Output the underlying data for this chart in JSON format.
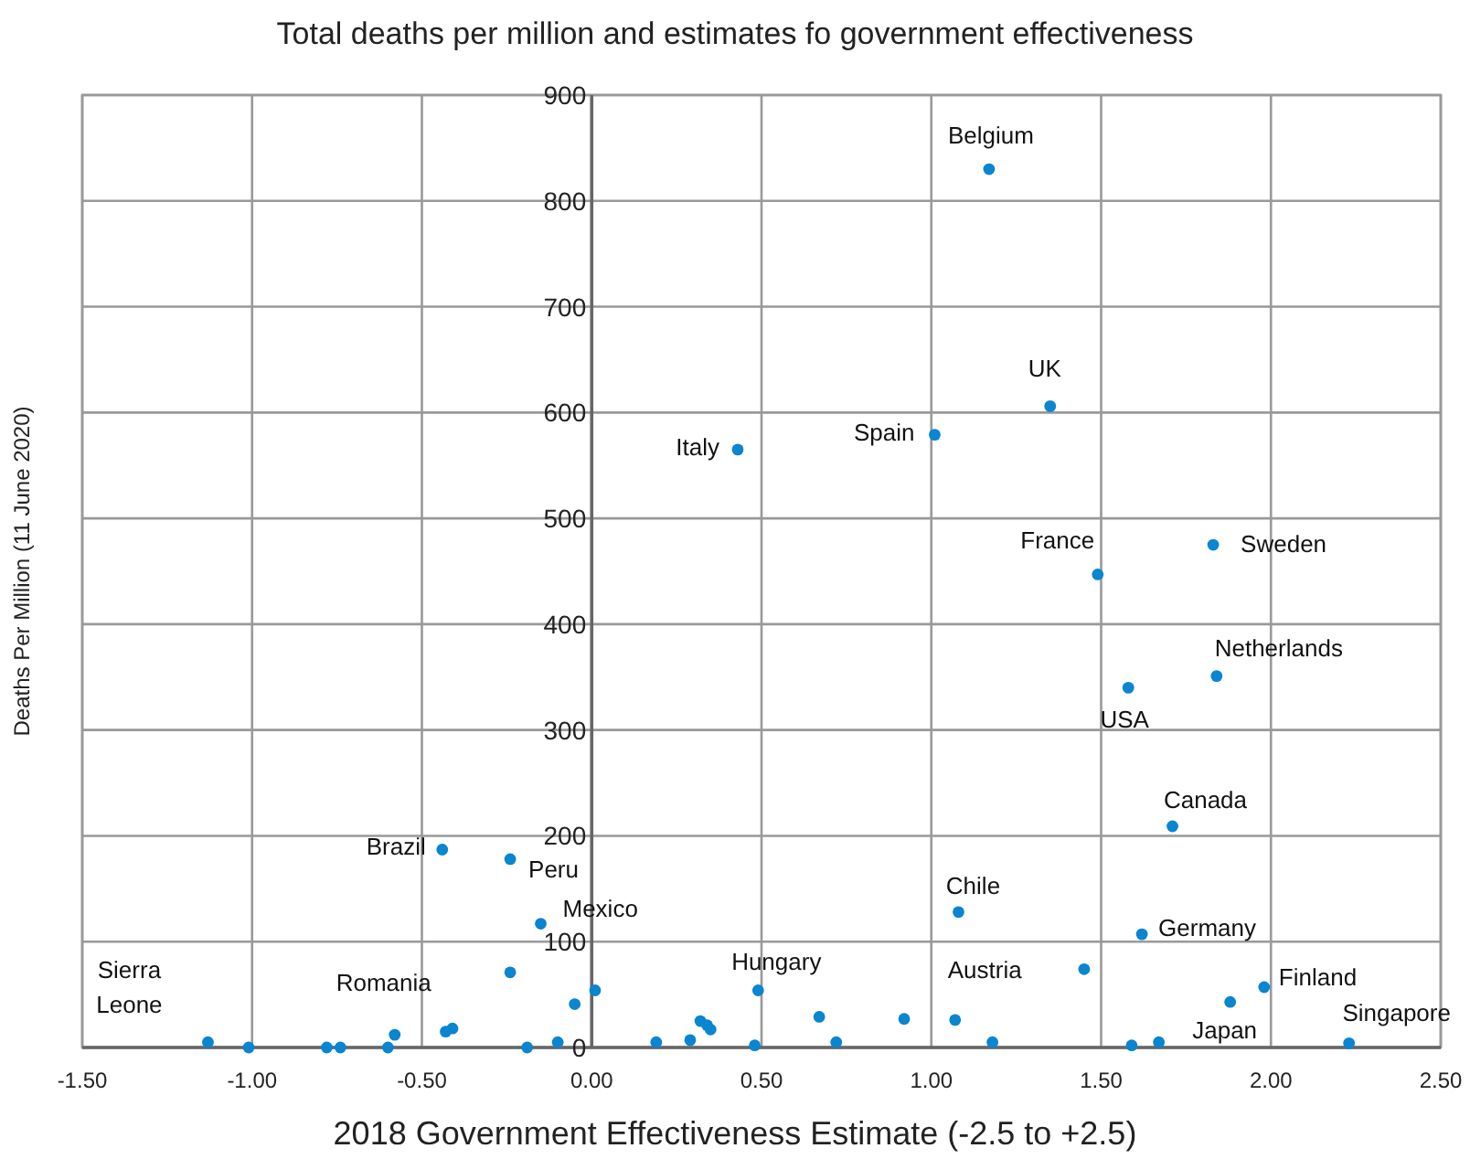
{
  "chart_data": {
    "type": "scatter",
    "title": "Total deaths per million and estimates fo government effectiveness",
    "xlabel": "2018 Government Effectiveness Estimate (-2.5 to +2.5)",
    "ylabel": "Deaths Per Million (11 June 2020)",
    "xlim": [
      -1.5,
      2.5
    ],
    "xticks": [
      {
        "value": -1.5,
        "label": "-1.50"
      },
      {
        "value": -1,
        "label": "-1.00"
      },
      {
        "value": -0.5,
        "label": "-0.50"
      },
      {
        "value": 0,
        "label": "0.00"
      },
      {
        "value": 0.5,
        "label": "0.50"
      },
      {
        "value": 1,
        "label": "1.00"
      },
      {
        "value": 1.5,
        "label": "1.50"
      },
      {
        "value": 2,
        "label": "2.00"
      },
      {
        "value": 2.5,
        "label": "2.50"
      }
    ],
    "ylim": [
      0,
      900
    ],
    "yticks": [
      0,
      100,
      200,
      300,
      400,
      500,
      600,
      700,
      800,
      900
    ],
    "grid": true,
    "marker": "circle",
    "series": [
      {
        "color": "#0a85d0",
        "x": [
          1.17,
          1.35,
          1.01,
          0.43,
          1.49,
          1.83,
          1.58,
          1.84,
          1.71,
          -0.44,
          -0.24,
          -0.15,
          -0.24,
          -0.05,
          0.01,
          1.08,
          1.62,
          0.49,
          1.07,
          1.45,
          1.98,
          1.88,
          2.23,
          1.59,
          1.67,
          1.18,
          0.72,
          0.67,
          0.92,
          0.48,
          0.19,
          0.29,
          0.32,
          0.34,
          0.35,
          -0.1,
          -0.19,
          -1.13,
          -1.01,
          -0.78,
          -0.74,
          -0.6,
          -0.58,
          -0.43,
          -0.41
        ],
        "values": [
          830,
          606,
          579,
          565,
          447,
          475,
          340,
          351,
          209,
          187,
          178,
          117,
          71,
          41,
          54,
          128,
          107,
          54,
          26,
          74,
          57,
          43,
          4,
          2,
          5,
          5,
          5,
          29,
          27,
          2,
          5,
          7,
          25,
          21,
          17,
          5,
          0,
          5,
          0,
          0,
          0,
          0,
          12,
          15,
          18
        ]
      }
    ],
    "annotations": [
      {
        "text": "Belgium",
        "x": 1.17,
        "y": 830
      },
      {
        "text": "UK",
        "x": 1.35,
        "y": 606
      },
      {
        "text": "Spain",
        "x": 1.01,
        "y": 579
      },
      {
        "text": "Italy",
        "x": 0.43,
        "y": 565
      },
      {
        "text": "France",
        "x": 1.49,
        "y": 447
      },
      {
        "text": "Sweden",
        "x": 1.83,
        "y": 475
      },
      {
        "text": "USA",
        "x": 1.58,
        "y": 340
      },
      {
        "text": "Netherlands",
        "x": 1.84,
        "y": 351
      },
      {
        "text": "Canada",
        "x": 1.71,
        "y": 209
      },
      {
        "text": "Brazil",
        "x": -0.44,
        "y": 187
      },
      {
        "text": "Peru",
        "x": -0.24,
        "y": 178
      },
      {
        "text": "Mexico",
        "x": -0.15,
        "y": 117
      },
      {
        "text": "Chile",
        "x": 1.08,
        "y": 128
      },
      {
        "text": "Germany",
        "x": 1.62,
        "y": 107
      },
      {
        "text": "Hungary",
        "x": 0.49,
        "y": 54
      },
      {
        "text": "Austria",
        "x": 1.07,
        "y": 26
      },
      {
        "text": "Finland",
        "x": 1.98,
        "y": 57
      },
      {
        "text": "Singapore",
        "x": 2.23,
        "y": 4
      },
      {
        "text": "Japan",
        "x": 1.67,
        "y": 5
      },
      {
        "text": "Romania",
        "x": -0.58,
        "y": 12
      },
      {
        "text": "Sierra Leone",
        "x": -1.13,
        "y": 5
      }
    ]
  }
}
